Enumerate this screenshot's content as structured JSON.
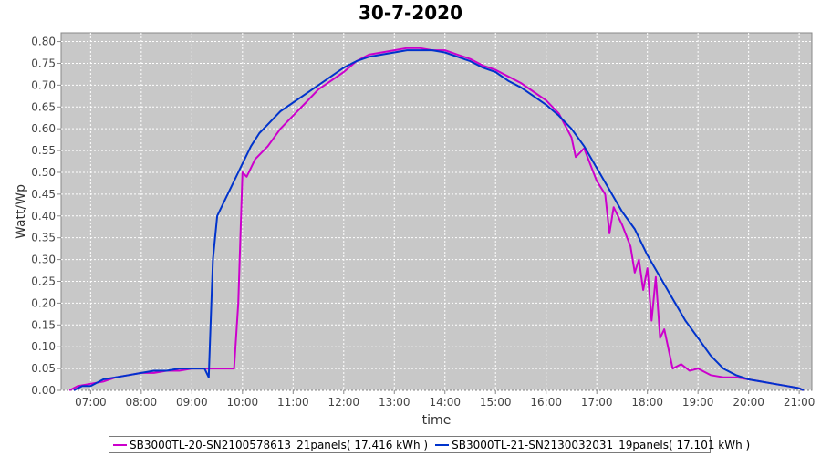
{
  "chart_data": {
    "type": "line",
    "title": "30-7-2020",
    "xlabel": "time",
    "ylabel": "Watt/Wp",
    "xlim": [
      "06:25",
      "21:15"
    ],
    "ylim": [
      0,
      0.82
    ],
    "grid": true,
    "legend_position": "bottom",
    "x_ticks": [
      "07:00",
      "08:00",
      "09:00",
      "10:00",
      "11:00",
      "12:00",
      "13:00",
      "14:00",
      "15:00",
      "16:00",
      "17:00",
      "18:00",
      "19:00",
      "20:00",
      "21:00"
    ],
    "y_ticks": [
      "0.00",
      "0.05",
      "0.10",
      "0.15",
      "0.20",
      "0.25",
      "0.30",
      "0.35",
      "0.40",
      "0.45",
      "0.50",
      "0.55",
      "0.60",
      "0.65",
      "0.70",
      "0.75",
      "0.80"
    ],
    "series": [
      {
        "name": "SB3000TL-20-SN2100578613_21panels( 17.416 kWh )",
        "color": "#cc00cc",
        "points": [
          [
            "06:35",
            0.0
          ],
          [
            "06:45",
            0.01
          ],
          [
            "07:00",
            0.015
          ],
          [
            "07:15",
            0.02
          ],
          [
            "07:30",
            0.03
          ],
          [
            "07:45",
            0.035
          ],
          [
            "08:00",
            0.04
          ],
          [
            "08:15",
            0.04
          ],
          [
            "08:30",
            0.045
          ],
          [
            "08:45",
            0.045
          ],
          [
            "09:00",
            0.05
          ],
          [
            "09:15",
            0.05
          ],
          [
            "09:30",
            0.05
          ],
          [
            "09:45",
            0.05
          ],
          [
            "09:50",
            0.05
          ],
          [
            "09:55",
            0.2
          ],
          [
            "10:00",
            0.5
          ],
          [
            "10:05",
            0.49
          ],
          [
            "10:15",
            0.53
          ],
          [
            "10:30",
            0.56
          ],
          [
            "10:45",
            0.6
          ],
          [
            "11:00",
            0.63
          ],
          [
            "11:15",
            0.66
          ],
          [
            "11:30",
            0.69
          ],
          [
            "11:45",
            0.71
          ],
          [
            "12:00",
            0.73
          ],
          [
            "12:15",
            0.755
          ],
          [
            "12:30",
            0.77
          ],
          [
            "12:45",
            0.775
          ],
          [
            "13:00",
            0.78
          ],
          [
            "13:15",
            0.785
          ],
          [
            "13:30",
            0.785
          ],
          [
            "13:45",
            0.78
          ],
          [
            "14:00",
            0.78
          ],
          [
            "14:15",
            0.77
          ],
          [
            "14:30",
            0.76
          ],
          [
            "14:45",
            0.745
          ],
          [
            "15:00",
            0.735
          ],
          [
            "15:15",
            0.72
          ],
          [
            "15:30",
            0.705
          ],
          [
            "15:45",
            0.685
          ],
          [
            "16:00",
            0.665
          ],
          [
            "16:15",
            0.635
          ],
          [
            "16:30",
            0.58
          ],
          [
            "16:35",
            0.535
          ],
          [
            "16:45",
            0.555
          ],
          [
            "17:00",
            0.48
          ],
          [
            "17:10",
            0.45
          ],
          [
            "17:15",
            0.36
          ],
          [
            "17:20",
            0.42
          ],
          [
            "17:30",
            0.38
          ],
          [
            "17:40",
            0.33
          ],
          [
            "17:45",
            0.27
          ],
          [
            "17:50",
            0.3
          ],
          [
            "17:55",
            0.23
          ],
          [
            "18:00",
            0.28
          ],
          [
            "18:05",
            0.16
          ],
          [
            "18:10",
            0.26
          ],
          [
            "18:15",
            0.12
          ],
          [
            "18:20",
            0.14
          ],
          [
            "18:30",
            0.05
          ],
          [
            "18:40",
            0.06
          ],
          [
            "18:50",
            0.045
          ],
          [
            "19:00",
            0.05
          ],
          [
            "19:15",
            0.035
          ],
          [
            "19:30",
            0.03
          ],
          [
            "19:45",
            0.03
          ],
          [
            "20:00",
            0.025
          ],
          [
            "20:15",
            0.02
          ],
          [
            "20:30",
            0.015
          ],
          [
            "20:45",
            0.01
          ],
          [
            "21:00",
            0.005
          ],
          [
            "21:05",
            0.0
          ]
        ]
      },
      {
        "name": "SB3000TL-21-SN2130032031_19panels( 17.101 kWh )",
        "color": "#0033cc",
        "points": [
          [
            "06:40",
            0.0
          ],
          [
            "06:50",
            0.01
          ],
          [
            "07:00",
            0.01
          ],
          [
            "07:15",
            0.025
          ],
          [
            "07:30",
            0.03
          ],
          [
            "07:45",
            0.035
          ],
          [
            "08:00",
            0.04
          ],
          [
            "08:15",
            0.045
          ],
          [
            "08:30",
            0.045
          ],
          [
            "08:45",
            0.05
          ],
          [
            "09:00",
            0.05
          ],
          [
            "09:10",
            0.05
          ],
          [
            "09:15",
            0.05
          ],
          [
            "09:20",
            0.03
          ],
          [
            "09:25",
            0.3
          ],
          [
            "09:30",
            0.4
          ],
          [
            "09:40",
            0.44
          ],
          [
            "09:50",
            0.48
          ],
          [
            "10:00",
            0.52
          ],
          [
            "10:10",
            0.56
          ],
          [
            "10:20",
            0.59
          ],
          [
            "10:30",
            0.61
          ],
          [
            "10:45",
            0.64
          ],
          [
            "11:00",
            0.66
          ],
          [
            "11:15",
            0.68
          ],
          [
            "11:30",
            0.7
          ],
          [
            "11:45",
            0.72
          ],
          [
            "12:00",
            0.74
          ],
          [
            "12:15",
            0.755
          ],
          [
            "12:30",
            0.765
          ],
          [
            "12:45",
            0.77
          ],
          [
            "13:00",
            0.775
          ],
          [
            "13:15",
            0.78
          ],
          [
            "13:30",
            0.78
          ],
          [
            "13:45",
            0.78
          ],
          [
            "14:00",
            0.775
          ],
          [
            "14:15",
            0.765
          ],
          [
            "14:30",
            0.755
          ],
          [
            "14:45",
            0.74
          ],
          [
            "15:00",
            0.73
          ],
          [
            "15:15",
            0.71
          ],
          [
            "15:30",
            0.695
          ],
          [
            "15:45",
            0.675
          ],
          [
            "16:00",
            0.655
          ],
          [
            "16:15",
            0.63
          ],
          [
            "16:30",
            0.6
          ],
          [
            "16:45",
            0.56
          ],
          [
            "17:00",
            0.51
          ],
          [
            "17:15",
            0.46
          ],
          [
            "17:30",
            0.41
          ],
          [
            "17:45",
            0.37
          ],
          [
            "18:00",
            0.31
          ],
          [
            "18:15",
            0.26
          ],
          [
            "18:30",
            0.21
          ],
          [
            "18:45",
            0.16
          ],
          [
            "19:00",
            0.12
          ],
          [
            "19:15",
            0.08
          ],
          [
            "19:30",
            0.05
          ],
          [
            "19:45",
            0.035
          ],
          [
            "20:00",
            0.025
          ],
          [
            "20:15",
            0.02
          ],
          [
            "20:30",
            0.015
          ],
          [
            "20:45",
            0.01
          ],
          [
            "21:00",
            0.005
          ],
          [
            "21:05",
            0.0
          ]
        ]
      }
    ]
  }
}
